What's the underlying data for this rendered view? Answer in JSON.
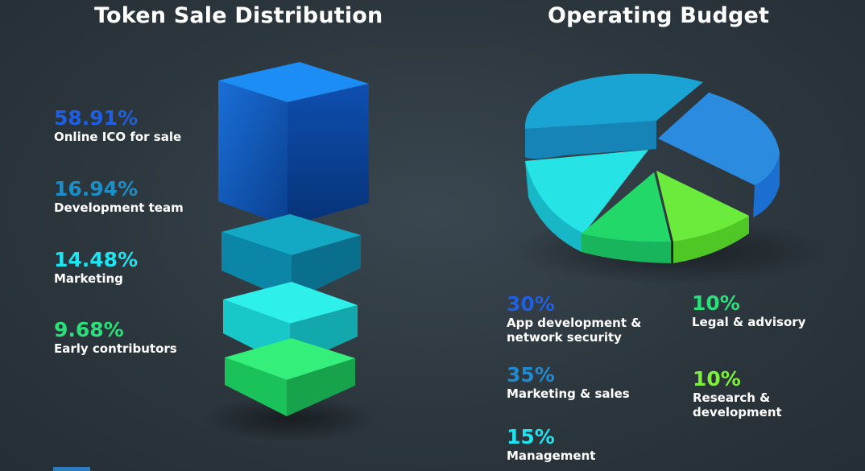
{
  "left_title": "Token Sale Distribution",
  "right_title": "Operating Budget",
  "colors": {
    "online_ico": "#1f63d6",
    "development_team": "#1d8fc7",
    "marketing": "#17d8e8",
    "early_contributors": "#27e06a",
    "app_dev": "#1f5fe0",
    "marketing_sales": "#1f8ad0",
    "management": "#1ee4f0",
    "legal": "#2be07a",
    "research": "#7cf03a"
  },
  "token_legend": [
    {
      "pct": "58.91%",
      "label": "Online ICO for sale",
      "color": "#1f5fe0"
    },
    {
      "pct": "16.94%",
      "label": "Development team",
      "color": "#1d8fc7"
    },
    {
      "pct": "14.48%",
      "label": "Marketing",
      "color": "#1ee4f0"
    },
    {
      "pct": "9.68%",
      "label": "Early contributors",
      "color": "#2be07a"
    }
  ],
  "budget_legend": [
    {
      "pct": "30%",
      "label1": "App development &",
      "label2": "network security",
      "color": "#1f5fe0"
    },
    {
      "pct": "35%",
      "label1": "Marketing & sales",
      "label2": "",
      "color": "#1f8ad0"
    },
    {
      "pct": "15%",
      "label1": "Management",
      "label2": "",
      "color": "#1ee4f0"
    },
    {
      "pct": "10%",
      "label1": "Legal & advisory",
      "label2": "",
      "color": "#2be07a"
    },
    {
      "pct": "10%",
      "label1": "Research &",
      "label2": "development",
      "color": "#7cf03a"
    }
  ],
  "chart_data": [
    {
      "type": "bar",
      "title": "Token Sale Distribution",
      "categories": [
        "Online ICO for sale",
        "Development team",
        "Marketing",
        "Early contributors"
      ],
      "values": [
        58.91,
        16.94,
        14.48,
        9.68
      ],
      "unit": "%"
    },
    {
      "type": "pie",
      "title": "Operating Budget",
      "categories": [
        "App development & network security",
        "Marketing & sales",
        "Management",
        "Legal & advisory",
        "Research & development"
      ],
      "values": [
        30,
        35,
        15,
        10,
        10
      ],
      "unit": "%"
    }
  ]
}
